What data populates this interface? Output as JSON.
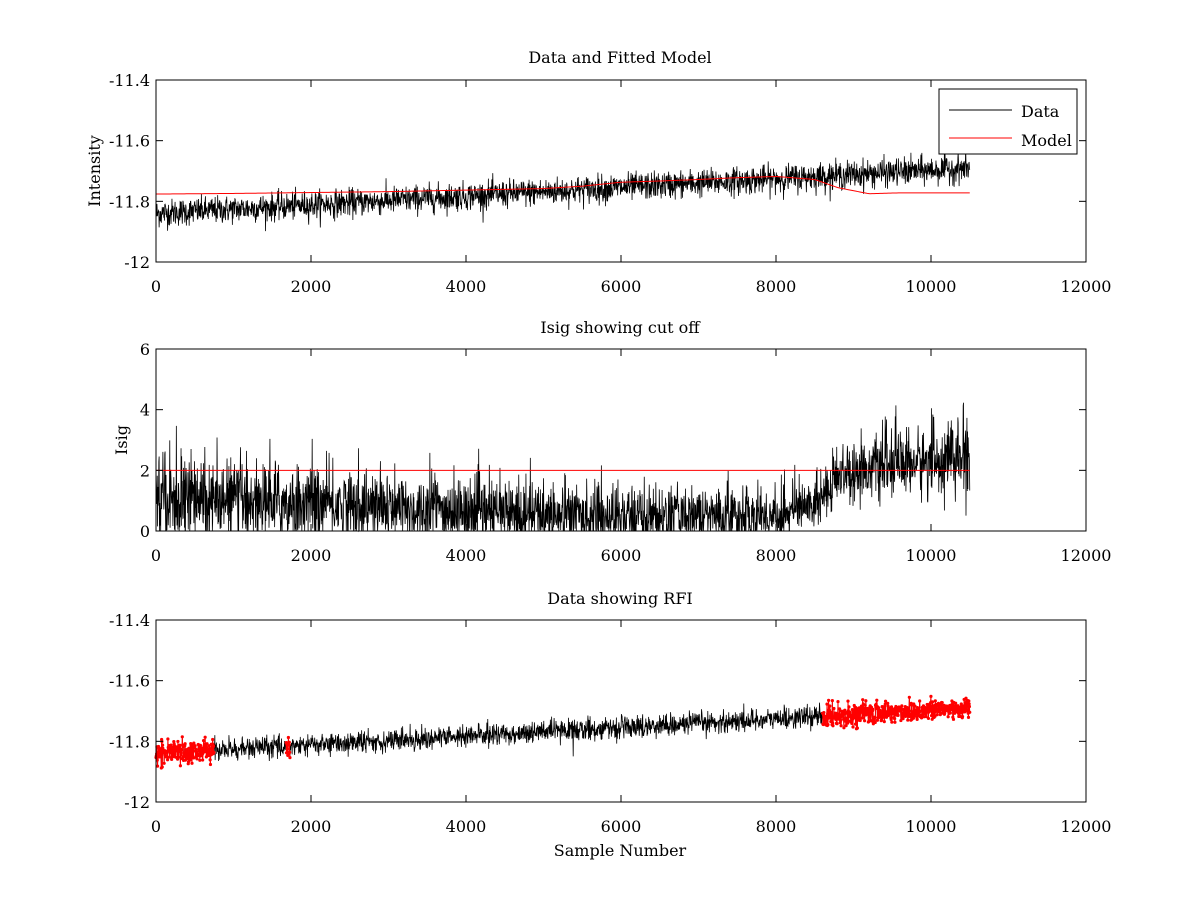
{
  "chart_data": [
    {
      "type": "line",
      "title": "Data and Fitted Model",
      "xlabel": "",
      "ylabel": "Intensity",
      "xlim": [
        0,
        12000
      ],
      "ylim": [
        -12,
        -11.4
      ],
      "xticks": [
        "0",
        "2000",
        "4000",
        "6000",
        "8000",
        "10000",
        "12000"
      ],
      "yticks": [
        "-12",
        "-11.8",
        "-11.6",
        "-11.4"
      ],
      "legend": {
        "position": "top-right",
        "entries": [
          "Data",
          "Model"
        ]
      },
      "series": [
        {
          "name": "Data",
          "color": "#000000",
          "trend": {
            "x": [
              0,
              10500
            ],
            "y": [
              -11.84,
              -11.69
            ]
          },
          "noise_amplitude": 0.05,
          "n_points": 10500
        },
        {
          "name": "Model",
          "color": "#ff0000",
          "x": [
            0,
            1000,
            2000,
            3000,
            4000,
            5000,
            5500,
            6000,
            6500,
            7000,
            7500,
            8000,
            8500,
            8800,
            9200,
            9600,
            10000,
            10500
          ],
          "y": [
            -11.776,
            -11.774,
            -11.771,
            -11.768,
            -11.763,
            -11.758,
            -11.75,
            -11.737,
            -11.733,
            -11.728,
            -11.722,
            -11.718,
            -11.728,
            -11.755,
            -11.775,
            -11.772,
            -11.772,
            -11.772
          ]
        }
      ]
    },
    {
      "type": "line",
      "title": "Isig showing cut off",
      "xlabel": "",
      "ylabel": "Isig",
      "xlim": [
        0,
        12000
      ],
      "ylim": [
        0,
        6
      ],
      "xticks": [
        "0",
        "2000",
        "4000",
        "6000",
        "8000",
        "10000",
        "12000"
      ],
      "yticks": [
        "0",
        "2",
        "4",
        "6"
      ],
      "series": [
        {
          "name": "Isig",
          "color": "#000000",
          "envelope": {
            "x": [
              0,
              500,
              2000,
              4000,
              6000,
              8000,
              8500,
              8800,
              9200,
              10000,
              10500
            ],
            "mean": [
              1.2,
              1.0,
              0.9,
              0.6,
              0.5,
              0.5,
              0.9,
              1.9,
              2.1,
              2.3,
              2.4
            ],
            "spread": [
              1.1,
              0.9,
              0.9,
              0.8,
              0.7,
              0.6,
              0.6,
              0.7,
              0.7,
              0.8,
              0.9
            ]
          },
          "n_points": 10500
        },
        {
          "name": "Cut off",
          "color": "#ff0000",
          "x": [
            0,
            10500
          ],
          "y": [
            2,
            2
          ]
        }
      ]
    },
    {
      "type": "scatter",
      "title": "Data showing RFI",
      "xlabel": "Sample Number",
      "ylabel": "",
      "xlim": [
        0,
        12000
      ],
      "ylim": [
        -12,
        -11.4
      ],
      "xticks": [
        "0",
        "2000",
        "4000",
        "6000",
        "8000",
        "10000",
        "12000"
      ],
      "yticks": [
        "-12",
        "-11.8",
        "-11.6",
        "-11.4"
      ],
      "series": [
        {
          "name": "Data",
          "color": "#000000",
          "trend": {
            "x": [
              0,
              10500
            ],
            "y": [
              -11.84,
              -11.69
            ]
          },
          "noise_amplitude": 0.04,
          "n_points": 10500
        },
        {
          "name": "RFI",
          "color": "#ff0000",
          "flagged_ranges": [
            [
              0,
              750
            ],
            [
              1680,
              1730
            ],
            [
              8600,
              10500
            ]
          ]
        }
      ]
    }
  ]
}
